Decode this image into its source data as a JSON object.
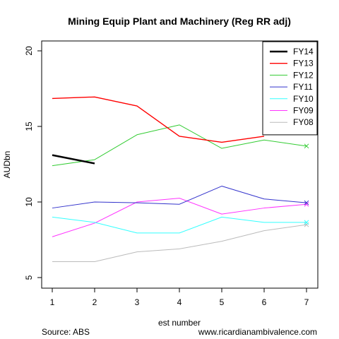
{
  "chart_data": {
    "type": "line",
    "title": "Mining Equip Plant and Machinery (Reg RR adj)",
    "xlabel": "est number",
    "ylabel": "AUDbn",
    "xlim": [
      1,
      7
    ],
    "ylim": [
      5,
      20
    ],
    "xticks": [
      1,
      2,
      3,
      4,
      5,
      6,
      7
    ],
    "yticks": [
      5,
      10,
      15,
      20
    ],
    "grid": false,
    "legend_position": "top-right",
    "series": [
      {
        "name": "FY14",
        "color": "#000000",
        "width": 2.5,
        "points": [
          [
            1,
            13.1
          ],
          [
            2,
            12.55
          ]
        ],
        "final_marker": false
      },
      {
        "name": "FY13",
        "color": "#ff0000",
        "width": 1.4,
        "points": [
          [
            1,
            16.85
          ],
          [
            2,
            16.95
          ],
          [
            3,
            16.35
          ],
          [
            4,
            14.35
          ],
          [
            5,
            13.95
          ],
          [
            6,
            14.35
          ]
        ],
        "final_marker": false
      },
      {
        "name": "FY12",
        "color": "#33cc33",
        "width": 1,
        "points": [
          [
            1,
            12.4
          ],
          [
            2,
            12.8
          ],
          [
            3,
            14.45
          ],
          [
            4,
            15.1
          ],
          [
            5,
            13.55
          ],
          [
            6,
            14.1
          ],
          [
            7,
            13.7
          ]
        ],
        "final_marker": true
      },
      {
        "name": "FY11",
        "color": "#3333cc",
        "width": 1,
        "points": [
          [
            1,
            9.6
          ],
          [
            2,
            10.0
          ],
          [
            3,
            9.95
          ],
          [
            4,
            9.85
          ],
          [
            5,
            11.05
          ],
          [
            6,
            10.2
          ],
          [
            7,
            9.95
          ]
        ],
        "final_marker": true
      },
      {
        "name": "FY10",
        "color": "#33ffff",
        "width": 1,
        "points": [
          [
            1,
            9.0
          ],
          [
            2,
            8.65
          ],
          [
            3,
            7.95
          ],
          [
            4,
            7.95
          ],
          [
            5,
            9.0
          ],
          [
            6,
            8.65
          ],
          [
            7,
            8.65
          ]
        ],
        "final_marker": true
      },
      {
        "name": "FY09",
        "color": "#ff33ff",
        "width": 1,
        "points": [
          [
            1,
            7.7
          ],
          [
            2,
            8.6
          ],
          [
            3,
            10.0
          ],
          [
            4,
            10.25
          ],
          [
            5,
            9.2
          ],
          [
            6,
            9.6
          ],
          [
            7,
            9.85
          ]
        ],
        "final_marker": true
      },
      {
        "name": "FY08",
        "color": "#bbbbbb",
        "width": 1,
        "points": [
          [
            1,
            6.05
          ],
          [
            2,
            6.05
          ],
          [
            3,
            6.7
          ],
          [
            4,
            6.9
          ],
          [
            5,
            7.4
          ],
          [
            6,
            8.1
          ],
          [
            7,
            8.5
          ]
        ],
        "final_marker": true
      }
    ]
  },
  "footer": {
    "source": "Source: ABS",
    "website": "www.ricardianambivalence.com"
  }
}
